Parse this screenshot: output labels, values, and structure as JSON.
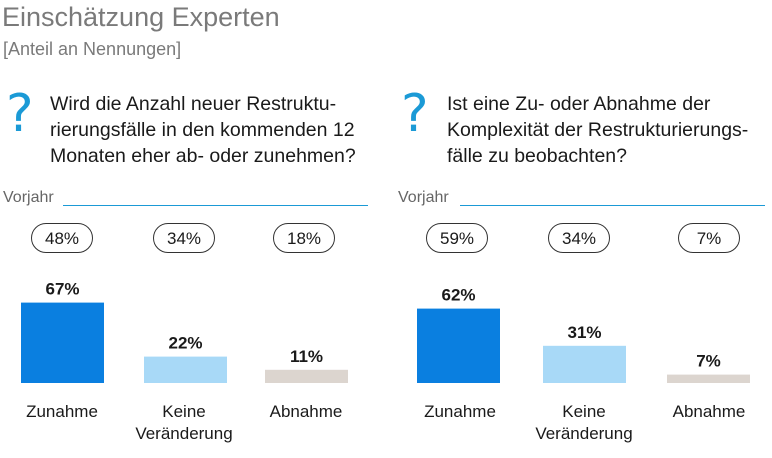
{
  "header": {
    "title": "Einschätzung Experten",
    "subtitle": "[Anteil an Nennungen]"
  },
  "chart_data": [
    {
      "type": "bar",
      "question": "Wird die Anzahl neuer Restrukturierungsfälle in den kommenden 12 Monaten eher ab- oder zunehmen?",
      "question_lines": [
        "Wird die Anzahl neuer Restruktu-",
        "rierungsfälle in den kommenden 12",
        "Monaten eher ab- oder zunehmen?"
      ],
      "previous_year_label": "Vorjahr",
      "categories": [
        "Zunahme",
        "Keine Veränderung",
        "Abnahme"
      ],
      "category_lines": [
        [
          "Zunahme"
        ],
        [
          "Keine",
          "Veränderung"
        ],
        [
          "Abnahme"
        ]
      ],
      "values": [
        67,
        22,
        11
      ],
      "value_labels": [
        "67%",
        "22%",
        "11%"
      ],
      "previous_year_values": [
        48,
        34,
        18
      ],
      "previous_year_labels": [
        "48%",
        "34%",
        "18%"
      ],
      "colors": [
        "#0a7fe0",
        "#a8d9f7",
        "#dcd5cf"
      ],
      "ylim": [
        0,
        100
      ]
    },
    {
      "type": "bar",
      "question": "Ist eine Zu- oder Abnahme der Komplexität der Restrukturierungsfälle zu beobachten?",
      "question_lines": [
        "Ist eine Zu- oder Abnahme der",
        "Komplexität der Restrukturierungs-",
        "fälle zu beobachten?"
      ],
      "previous_year_label": "Vorjahr",
      "categories": [
        "Zunahme",
        "Keine Veränderung",
        "Abnahme"
      ],
      "category_lines": [
        [
          "Zunahme"
        ],
        [
          "Keine",
          "Veränderung"
        ],
        [
          "Abnahme"
        ]
      ],
      "values": [
        62,
        31,
        7
      ],
      "value_labels": [
        "62%",
        "31%",
        "7%"
      ],
      "previous_year_values": [
        59,
        34,
        7
      ],
      "previous_year_labels": [
        "59%",
        "34%",
        "7%"
      ],
      "colors": [
        "#0a7fe0",
        "#a8d9f7",
        "#dcd5cf"
      ],
      "ylim": [
        0,
        100
      ]
    }
  ],
  "icons": {
    "question": "question-mark-icon"
  }
}
